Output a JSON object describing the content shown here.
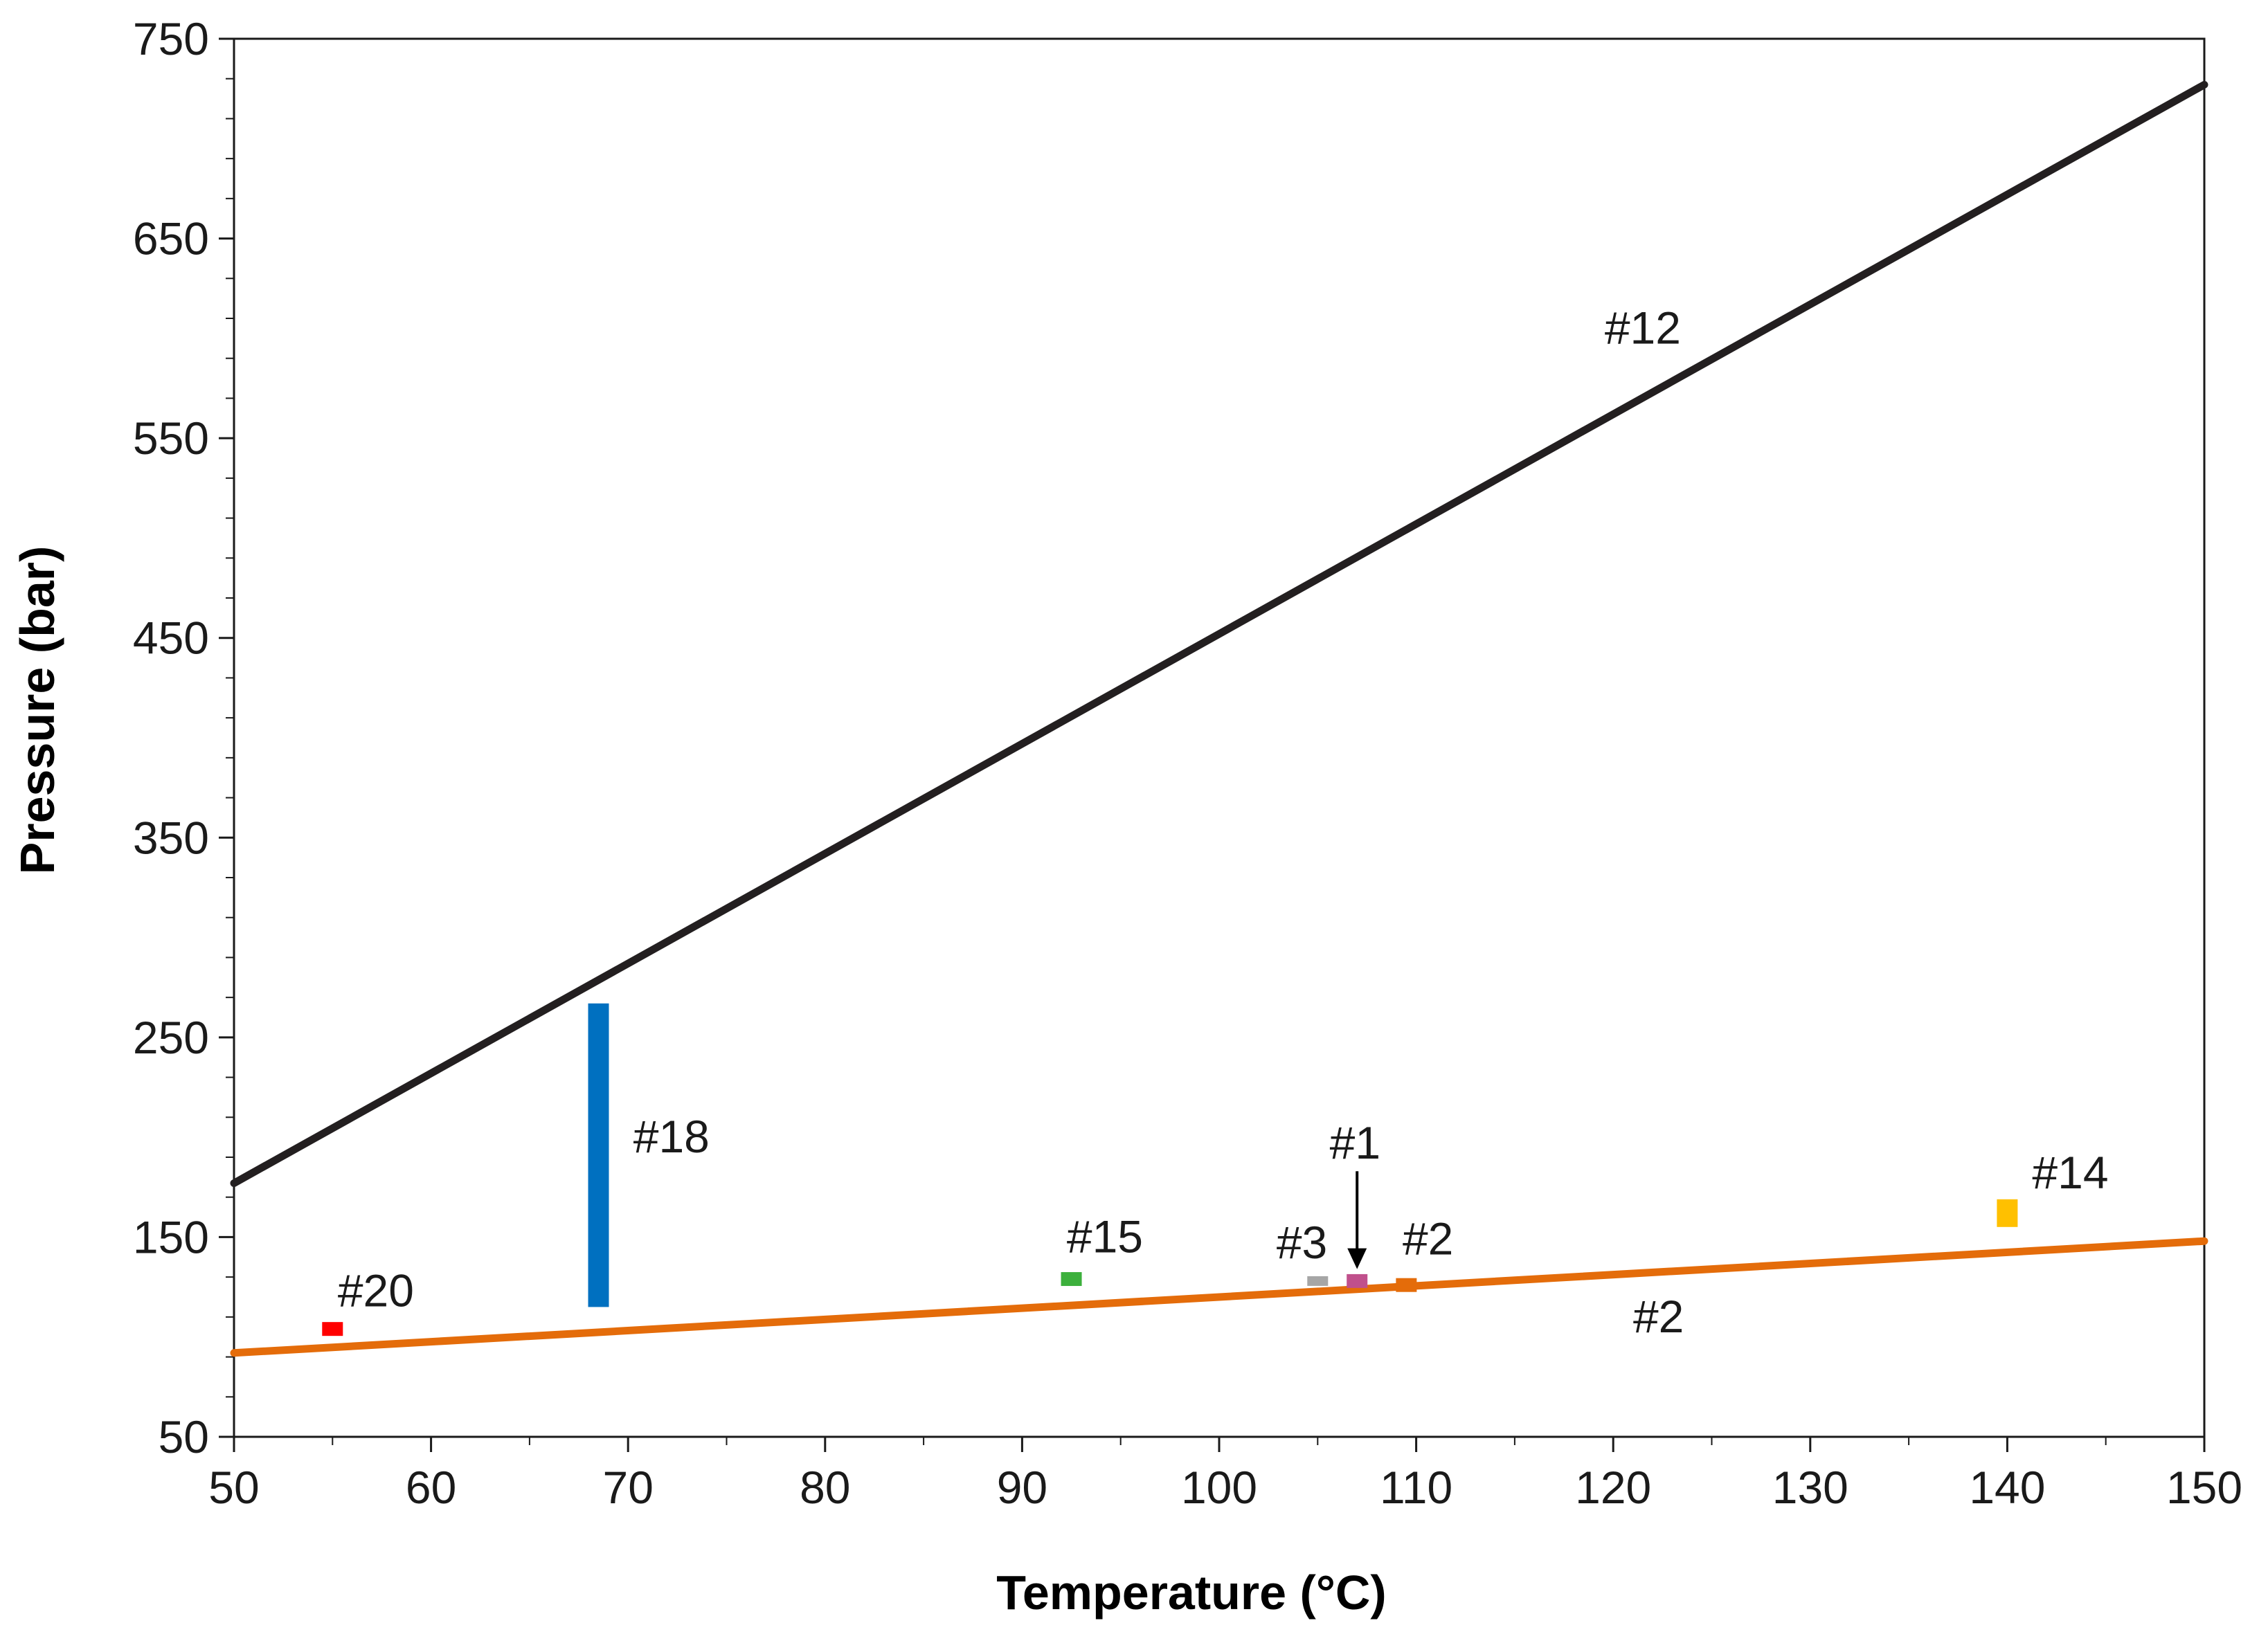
{
  "chart_data": {
    "type": "line",
    "title": "",
    "xlabel": "Temperature (°C)",
    "ylabel": "Pressure (bar)",
    "xlim": [
      50,
      150
    ],
    "ylim": [
      50,
      750
    ],
    "x_ticks": [
      50,
      60,
      70,
      80,
      90,
      100,
      110,
      120,
      130,
      140,
      150
    ],
    "y_ticks": [
      50,
      150,
      250,
      350,
      450,
      550,
      650,
      750
    ],
    "x_tick_labels": [
      "50",
      "60",
      "70",
      "80",
      "90",
      "100",
      "110",
      "120",
      "130",
      "140",
      "150"
    ],
    "y_tick_labels": [
      "50",
      "150",
      "250",
      "350",
      "450",
      "550",
      "650",
      "750"
    ],
    "grid": false,
    "legend": false,
    "series": [
      {
        "name": "#12",
        "color": "#231f20",
        "x": [
          50,
          150
        ],
        "y": [
          177,
          727
        ]
      },
      {
        "name": "#2",
        "color": "#e46c0a",
        "x": [
          50,
          150
        ],
        "y": [
          92,
          148
        ]
      }
    ],
    "markers": [
      {
        "name": "#20",
        "color": "#ff0000",
        "x": 55,
        "y": 104
      },
      {
        "name": "#18",
        "color": "#0070c0",
        "x": 68.5,
        "y_low": 115,
        "y_high": 267
      },
      {
        "name": "#15",
        "color": "#3cb03c",
        "x": 92.5,
        "y": 129
      },
      {
        "name": "#3",
        "color": "#a6a6a6",
        "x": 105,
        "y": 128
      },
      {
        "name": "#1",
        "color": "#c0508c",
        "x": 107,
        "y": 128
      },
      {
        "name": "#2",
        "color": "#e46c0a",
        "x": 109.5,
        "y": 126
      },
      {
        "name": "#14",
        "color": "#ffc000",
        "x": 140,
        "y": 162
      }
    ],
    "annotations": [
      {
        "text": "#12",
        "x": 121.5,
        "y": 605
      },
      {
        "text": "#18",
        "x": 72.2,
        "y": 200
      },
      {
        "text": "#20",
        "x": 57.2,
        "y": 123
      },
      {
        "text": "#15",
        "x": 94.2,
        "y": 150
      },
      {
        "text": "#3",
        "x": 104.2,
        "y": 147
      },
      {
        "text": "#1",
        "x": 106.9,
        "y": 197
      },
      {
        "text": "#2",
        "x": 110.6,
        "y": 149
      },
      {
        "text": "#2",
        "x": 122.3,
        "y": 110
      },
      {
        "text": "#14",
        "x": 143.2,
        "y": 182
      }
    ],
    "arrow": {
      "x": 107,
      "y_from": 183,
      "y_to": 134
    }
  }
}
